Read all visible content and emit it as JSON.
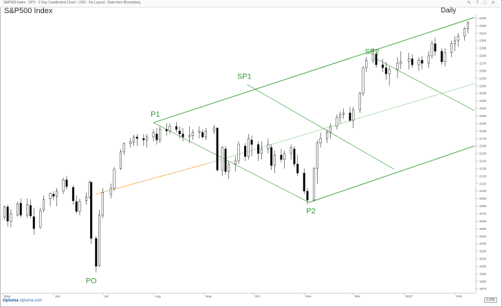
{
  "header": {
    "info": "S&P500 Index - SPX - 1 Day Candlestick Chart - USD - No Layout - Data from Bloomberg",
    "icons": [
      "pencil-icon",
      "question-icon",
      "maximize-icon",
      "close-icon"
    ]
  },
  "title": "S&P500 Index",
  "period": "Daily",
  "footer": {
    "logo_brand": "Optuma",
    "logo_site": "optuma.com",
    "zoom": "1,000"
  },
  "colors": {
    "candle_up": "#ffffff",
    "candle_down": "#000000",
    "fork": "#3aa33a",
    "fork_light": "#9fd59f",
    "dash": "#f0a030",
    "label": "#2f9a2f"
  },
  "chart_data": {
    "type": "candlestick",
    "title": "S&P500 Index",
    "xlabel": "",
    "ylabel": "",
    "x_ticks": [
      "May",
      "Jun",
      "Jul",
      "Aug",
      "Sep",
      "Oct",
      "Nov",
      "Dec",
      "2017",
      "Feb"
    ],
    "y_ticks": [
      1970,
      1980,
      1990,
      2000,
      2010,
      2020,
      2030,
      2040,
      2050,
      2060,
      2070,
      2080,
      2090,
      2100,
      2110,
      2120,
      2130,
      2140,
      2150,
      2160,
      2170,
      2180,
      2190,
      2200,
      2210,
      2220,
      2230,
      2240,
      2250,
      2260,
      2270,
      2280,
      2290,
      2300,
      2310,
      2320,
      2330
    ],
    "ylim": [
      1966,
      2334
    ],
    "x_range": [
      "2016-05-01",
      "2017-02-13"
    ],
    "grid": false,
    "annotations": [
      {
        "label": "P1",
        "date": "2016-08-01",
        "value": 2190
      },
      {
        "label": "SP1",
        "date": "2016-09-27",
        "value": 2242
      },
      {
        "label": "SP2",
        "date": "2016-12-14",
        "value": 2277
      },
      {
        "label": "PO",
        "date": "2016-06-24",
        "value": 1992
      },
      {
        "label": "P2",
        "date": "2016-11-04",
        "value": 2084
      }
    ],
    "pitchfork": {
      "pivots": [
        {
          "name": "PO",
          "date": "2016-06-24",
          "value": 1992
        },
        {
          "name": "P1",
          "date": "2016-08-01",
          "value": 2190
        },
        {
          "name": "P2",
          "date": "2016-11-04",
          "value": 2084
        }
      ],
      "median_dashed_from": {
        "date": "2016-06-27",
        "value": 2096
      },
      "median_dashed_to": {
        "date": "2016-09-02",
        "value": 2136
      },
      "median_solid_to": {
        "date": "2017-02-13",
        "value": 2243
      },
      "upper_tine": {
        "from": {
          "date": "2016-08-01",
          "value": 2191
        },
        "to": {
          "date": "2017-02-13",
          "value": 2331
        }
      },
      "lower_tine": {
        "from": {
          "date": "2016-11-04",
          "value": 2085
        },
        "to": {
          "date": "2017-02-13",
          "value": 2160
        }
      },
      "sliding_parallels": [
        {
          "from": {
            "date": "2016-08-01",
            "value": 2191
          },
          "to": {
            "date": "2016-11-04",
            "value": 2085
          }
        },
        {
          "from": {
            "date": "2016-09-27",
            "value": 2242
          },
          "to": {
            "date": "2016-12-26",
            "value": 2129
          }
        },
        {
          "from": {
            "date": "2016-12-14",
            "value": 2277
          },
          "to": {
            "date": "2017-02-13",
            "value": 2207
          }
        }
      ]
    },
    "series": [
      {
        "name": "SPX",
        "ohlc": [
          [
            "2016-05-02",
            2065,
            2081,
            2062,
            2079
          ],
          [
            "2016-05-04",
            2079,
            2082,
            2053,
            2060
          ],
          [
            "2016-05-06",
            2060,
            2076,
            2052,
            2070
          ],
          [
            "2016-05-10",
            2068,
            2086,
            2066,
            2083
          ],
          [
            "2016-05-12",
            2084,
            2090,
            2065,
            2068
          ],
          [
            "2016-05-16",
            2068,
            2090,
            2064,
            2082
          ],
          [
            "2016-05-18",
            2081,
            2089,
            2064,
            2067
          ],
          [
            "2016-05-20",
            2066,
            2078,
            2042,
            2050
          ],
          [
            "2016-05-24",
            2052,
            2078,
            2050,
            2074
          ],
          [
            "2016-05-26",
            2075,
            2094,
            2072,
            2089
          ],
          [
            "2016-05-30",
            2090,
            2098,
            2080,
            2097
          ],
          [
            "2016-06-01",
            2096,
            2100,
            2088,
            2093
          ],
          [
            "2016-06-03",
            2093,
            2104,
            2080,
            2100
          ],
          [
            "2016-06-07",
            2100,
            2118,
            2096,
            2115
          ],
          [
            "2016-06-09",
            2115,
            2120,
            2102,
            2106
          ],
          [
            "2016-06-13",
            2105,
            2108,
            2082,
            2087
          ],
          [
            "2016-06-15",
            2086,
            2094,
            2070,
            2073
          ],
          [
            "2016-06-17",
            2073,
            2090,
            2068,
            2086
          ],
          [
            "2016-06-21",
            2087,
            2098,
            2082,
            2092
          ],
          [
            "2016-06-23",
            2092,
            2114,
            2090,
            2112
          ],
          [
            "2016-06-24",
            2112,
            2112,
            2030,
            2037
          ],
          [
            "2016-06-27",
            2037,
            2040,
            1992,
            2000
          ],
          [
            "2016-06-29",
            2001,
            2075,
            1999,
            2068
          ],
          [
            "2016-07-01",
            2068,
            2104,
            2064,
            2098
          ],
          [
            "2016-07-06",
            2096,
            2110,
            2090,
            2104
          ],
          [
            "2016-07-08",
            2104,
            2132,
            2100,
            2129
          ],
          [
            "2016-07-12",
            2130,
            2156,
            2128,
            2152
          ],
          [
            "2016-07-14",
            2152,
            2165,
            2148,
            2163
          ],
          [
            "2016-07-18",
            2163,
            2170,
            2158,
            2166
          ],
          [
            "2016-07-20",
            2165,
            2175,
            2160,
            2172
          ],
          [
            "2016-07-22",
            2172,
            2176,
            2160,
            2170
          ],
          [
            "2016-07-26",
            2170,
            2176,
            2160,
            2168
          ],
          [
            "2016-07-28",
            2168,
            2176,
            2158,
            2172
          ],
          [
            "2016-08-01",
            2172,
            2182,
            2166,
            2178
          ],
          [
            "2016-08-03",
            2176,
            2184,
            2162,
            2168
          ],
          [
            "2016-08-05",
            2168,
            2186,
            2164,
            2182
          ],
          [
            "2016-08-09",
            2182,
            2190,
            2174,
            2180
          ],
          [
            "2016-08-11",
            2180,
            2190,
            2176,
            2186
          ],
          [
            "2016-08-15",
            2186,
            2192,
            2178,
            2182
          ],
          [
            "2016-08-17",
            2180,
            2186,
            2170,
            2176
          ],
          [
            "2016-08-19",
            2176,
            2184,
            2166,
            2172
          ],
          [
            "2016-08-23",
            2172,
            2186,
            2164,
            2174
          ],
          [
            "2016-08-25",
            2174,
            2182,
            2168,
            2178
          ],
          [
            "2016-08-29",
            2178,
            2186,
            2170,
            2180
          ],
          [
            "2016-08-31",
            2178,
            2182,
            2170,
            2172
          ],
          [
            "2016-09-02",
            2172,
            2184,
            2168,
            2180
          ],
          [
            "2016-09-07",
            2180,
            2188,
            2176,
            2184
          ],
          [
            "2016-09-09",
            2184,
            2184,
            2126,
            2128
          ],
          [
            "2016-09-12",
            2128,
            2160,
            2120,
            2158
          ],
          [
            "2016-09-14",
            2156,
            2160,
            2122,
            2126
          ],
          [
            "2016-09-16",
            2126,
            2140,
            2116,
            2136
          ],
          [
            "2016-09-20",
            2136,
            2146,
            2126,
            2140
          ],
          [
            "2016-09-22",
            2140,
            2166,
            2136,
            2162
          ],
          [
            "2016-09-26",
            2160,
            2164,
            2140,
            2146
          ],
          [
            "2016-09-28",
            2146,
            2176,
            2142,
            2170
          ],
          [
            "2016-09-30",
            2168,
            2174,
            2146,
            2162
          ],
          [
            "2016-10-04",
            2162,
            2166,
            2140,
            2150
          ],
          [
            "2016-10-06",
            2150,
            2166,
            2142,
            2156
          ],
          [
            "2016-10-10",
            2156,
            2170,
            2150,
            2162
          ],
          [
            "2016-10-12",
            2158,
            2162,
            2128,
            2134
          ],
          [
            "2016-10-14",
            2134,
            2154,
            2124,
            2148
          ],
          [
            "2016-10-18",
            2148,
            2156,
            2138,
            2142
          ],
          [
            "2016-10-20",
            2142,
            2154,
            2130,
            2150
          ],
          [
            "2016-10-24",
            2150,
            2162,
            2142,
            2158
          ],
          [
            "2016-10-26",
            2156,
            2160,
            2132,
            2136
          ],
          [
            "2016-10-28",
            2136,
            2148,
            2120,
            2124
          ],
          [
            "2016-11-01",
            2124,
            2130,
            2096,
            2100
          ],
          [
            "2016-11-03",
            2100,
            2104,
            2082,
            2088
          ],
          [
            "2016-11-07",
            2088,
            2132,
            2086,
            2130
          ],
          [
            "2016-11-09",
            2130,
            2168,
            2110,
            2164
          ],
          [
            "2016-11-11",
            2164,
            2178,
            2158,
            2170
          ],
          [
            "2016-11-15",
            2170,
            2182,
            2164,
            2178
          ],
          [
            "2016-11-17",
            2178,
            2190,
            2170,
            2186
          ],
          [
            "2016-11-21",
            2186,
            2202,
            2182,
            2198
          ],
          [
            "2016-11-23",
            2198,
            2206,
            2190,
            2202
          ],
          [
            "2016-11-25",
            2202,
            2210,
            2196,
            2204
          ],
          [
            "2016-11-29",
            2204,
            2212,
            2192,
            2194
          ],
          [
            "2016-12-01",
            2194,
            2212,
            2184,
            2208
          ],
          [
            "2016-12-05",
            2208,
            2232,
            2204,
            2230
          ],
          [
            "2016-12-07",
            2230,
            2266,
            2226,
            2264
          ],
          [
            "2016-12-09",
            2264,
            2278,
            2258,
            2274
          ],
          [
            "2016-12-13",
            2274,
            2290,
            2270,
            2282
          ],
          [
            "2016-12-15",
            2282,
            2288,
            2264,
            2268
          ],
          [
            "2016-12-19",
            2268,
            2276,
            2258,
            2264
          ],
          [
            "2016-12-21",
            2264,
            2272,
            2248,
            2256
          ],
          [
            "2016-12-23",
            2256,
            2266,
            2240,
            2262
          ],
          [
            "2016-12-28",
            2262,
            2278,
            2250,
            2270
          ],
          [
            "2016-12-30",
            2270,
            2286,
            2262,
            2272
          ],
          [
            "2017-01-04",
            2272,
            2284,
            2262,
            2276
          ],
          [
            "2017-01-06",
            2276,
            2282,
            2264,
            2268
          ],
          [
            "2017-01-10",
            2268,
            2278,
            2260,
            2274
          ],
          [
            "2017-01-12",
            2274,
            2280,
            2262,
            2270
          ],
          [
            "2017-01-16",
            2270,
            2286,
            2264,
            2280
          ],
          [
            "2017-01-18",
            2280,
            2300,
            2276,
            2296
          ],
          [
            "2017-01-20",
            2296,
            2304,
            2280,
            2286
          ],
          [
            "2017-01-24",
            2286,
            2290,
            2268,
            2272
          ],
          [
            "2017-01-26",
            2272,
            2290,
            2266,
            2284
          ],
          [
            "2017-01-30",
            2284,
            2300,
            2278,
            2296
          ],
          [
            "2017-02-01",
            2296,
            2306,
            2286,
            2300
          ],
          [
            "2017-02-03",
            2300,
            2310,
            2292,
            2306
          ],
          [
            "2017-02-07",
            2306,
            2318,
            2300,
            2316
          ],
          [
            "2017-02-09",
            2316,
            2326,
            2310,
            2324
          ]
        ]
      }
    ]
  }
}
